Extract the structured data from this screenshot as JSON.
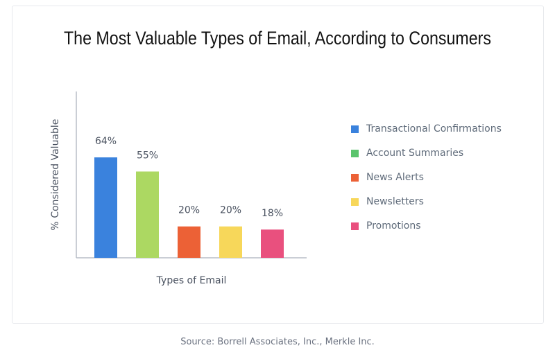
{
  "chart_data": {
    "type": "bar",
    "title": "The Most Valuable Types of Email, According to Consumers",
    "xlabel": "Types of Email",
    "ylabel": "% Considered Valuable",
    "categories": [
      "Transactional Confirmations",
      "Account Summaries",
      "News Alerts",
      "Newsletters",
      "Promotions"
    ],
    "values": [
      64,
      55,
      20,
      20,
      18
    ],
    "data_labels": [
      "64%",
      "55%",
      "20%",
      "20%",
      "18%"
    ],
    "bar_colors": [
      "#3a82dd",
      "#acd862",
      "#ec6136",
      "#f7d75a",
      "#e9507e"
    ],
    "legend_colors": [
      "#3a82dd",
      "#5ac46c",
      "#ec6136",
      "#f7d75a",
      "#e9507e"
    ],
    "ylim": [
      0,
      106
    ],
    "grid": false,
    "legend_placement": "right"
  },
  "source": "Source: Borrell Associates, Inc., Merkle Inc."
}
